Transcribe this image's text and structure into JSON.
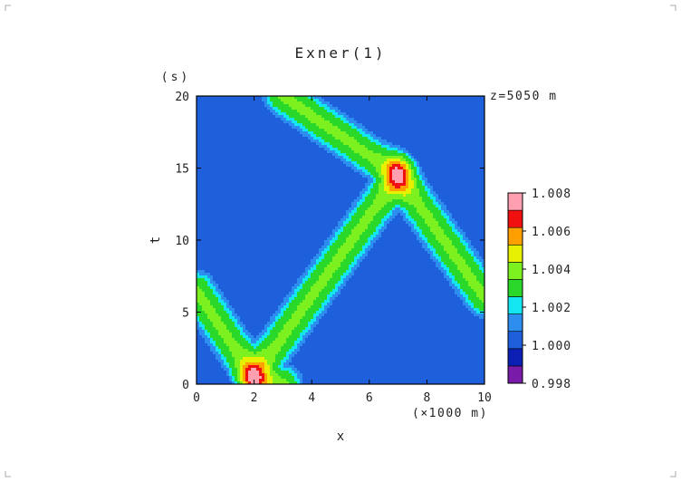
{
  "chart_data": {
    "type": "heatmap",
    "title": "Exner(1)",
    "xlabel": "x",
    "ylabel": "t",
    "x_unit": "(×1000 m)",
    "y_unit": "(s)",
    "annotation": "z=5050 m",
    "xlim": [
      0,
      10
    ],
    "ylim": [
      0,
      20
    ],
    "x_ticks": [
      0,
      2,
      4,
      6,
      8,
      10
    ],
    "y_ticks": [
      0,
      5,
      10,
      15,
      20
    ],
    "colorbar": {
      "levels": [
        0.998,
        0.999,
        1.0,
        1.001,
        1.0015,
        1.002,
        1.003,
        1.004,
        1.005,
        1.006,
        1.007,
        1.008
      ],
      "tick_labels": [
        "1.008",
        "1.006",
        "1.004",
        "1.002",
        "1.000",
        "0.998"
      ],
      "colors": [
        "#7a1aa8",
        "#0b1fb4",
        "#1e5fdc",
        "#2d8ef0",
        "#13e6f0",
        "#2ad82a",
        "#7df020",
        "#e6f000",
        "#ffa000",
        "#f01010",
        "#ff9fb0"
      ]
    },
    "features": [
      {
        "kind": "pulse-max",
        "x": 2.0,
        "t": 0.5,
        "peak": 1.008
      },
      {
        "kind": "pulse-max",
        "x": 7.0,
        "t": 14.5,
        "peak": 1.008
      },
      {
        "kind": "ridge",
        "from": [
          2.0,
          0.5
        ],
        "to": [
          7.0,
          14.5
        ]
      },
      {
        "kind": "ridge",
        "from": [
          7.0,
          14.5
        ],
        "to": [
          3.0,
          20.0
        ]
      },
      {
        "kind": "ridge",
        "from": [
          7.0,
          14.5
        ],
        "to": [
          10.0,
          6.0
        ]
      },
      {
        "kind": "ridge",
        "from": [
          2.0,
          0.5
        ],
        "to": [
          0.0,
          6.5
        ]
      },
      {
        "kind": "ridge",
        "from": [
          2.0,
          0.5
        ],
        "to": [
          3.0,
          0.0
        ]
      }
    ]
  }
}
